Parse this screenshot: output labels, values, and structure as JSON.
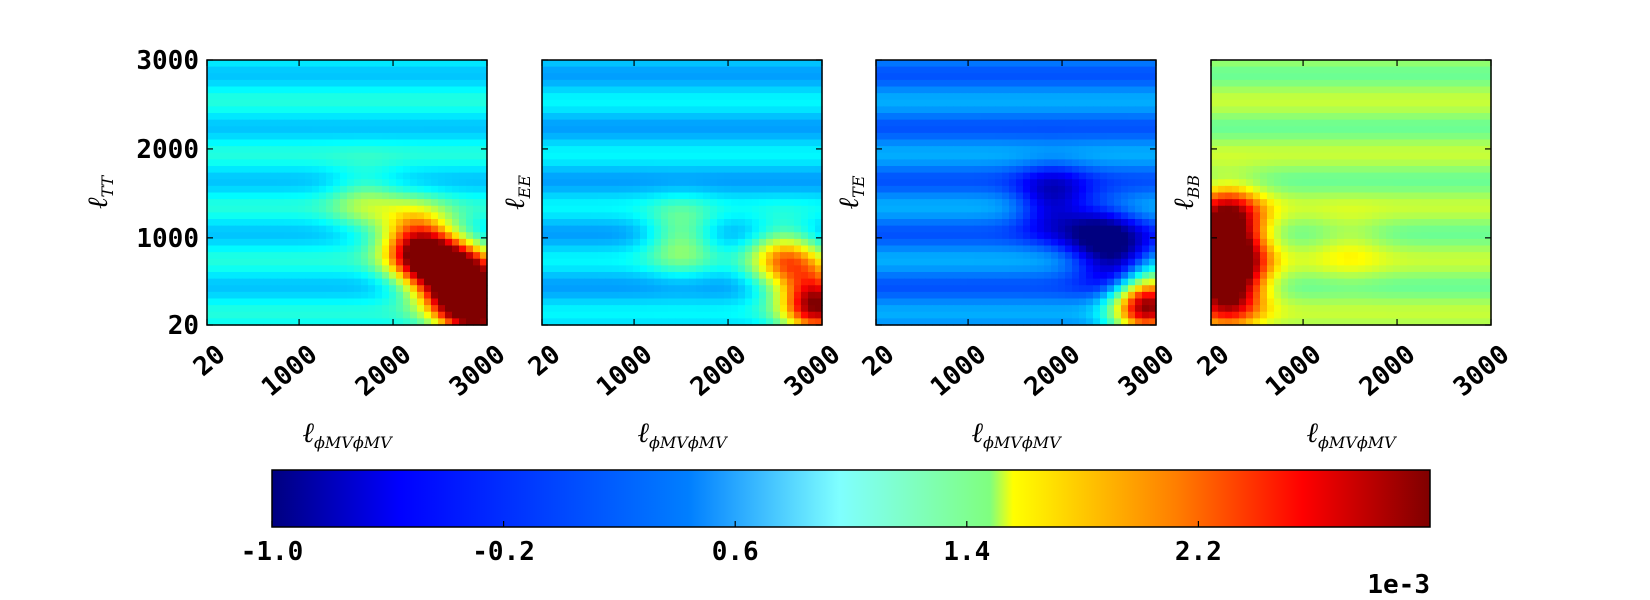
{
  "chart_data": [
    {
      "type": "heatmap",
      "panel": "TT",
      "xlabel": "ℓ",
      "xlabel_sub": "ϕMVϕMV",
      "ylabel": "ℓ",
      "ylabel_sub": "TT",
      "xlim": [
        20,
        3000
      ],
      "ylim": [
        20,
        3000
      ],
      "xticks": [
        "20",
        "1000",
        "2000",
        "3000"
      ],
      "yticks": [
        "20",
        "1000",
        "2000",
        "3000"
      ],
      "show_yticks": true,
      "mean": 0.00045,
      "features": [
        {
          "x": 2700,
          "y": 500,
          "value": 0.003
        },
        {
          "x": 2900,
          "y": 250,
          "value": 0.0032
        },
        {
          "x": 2400,
          "y": 750,
          "value": 0.0026
        },
        {
          "x": 2200,
          "y": 1000,
          "value": 0.0018
        },
        {
          "x": 1700,
          "y": 1400,
          "value": 0.001
        }
      ]
    },
    {
      "type": "heatmap",
      "panel": "EE",
      "xlabel": "ℓ",
      "xlabel_sub": "ϕMVϕMV",
      "ylabel": "ℓ",
      "ylabel_sub": "EE",
      "xlim": [
        20,
        3000
      ],
      "ylim": [
        20,
        3000
      ],
      "xticks": [
        "20",
        "1000",
        "2000",
        "3000"
      ],
      "show_yticks": false,
      "mean": 0.0003,
      "features": [
        {
          "x": 2950,
          "y": 280,
          "value": 0.0029
        },
        {
          "x": 2600,
          "y": 750,
          "value": 0.0018
        },
        {
          "x": 1500,
          "y": 1000,
          "value": 0.0011
        }
      ]
    },
    {
      "type": "heatmap",
      "panel": "TE",
      "xlabel": "ℓ",
      "xlabel_sub": "ϕMVϕMV",
      "ylabel": "ℓ",
      "ylabel_sub": "TE",
      "xlim": [
        20,
        3000
      ],
      "ylim": [
        20,
        3000
      ],
      "xticks": [
        "20",
        "1000",
        "2000",
        "3000"
      ],
      "show_yticks": false,
      "mean": 0.0,
      "features": [
        {
          "x": 2900,
          "y": 280,
          "value": 0.0031
        },
        {
          "x": 2700,
          "y": 650,
          "value": -0.001
        },
        {
          "x": 2400,
          "y": 1000,
          "value": -0.0009
        },
        {
          "x": 1900,
          "y": 1400,
          "value": -0.0008
        }
      ]
    },
    {
      "type": "heatmap",
      "panel": "BB",
      "xlabel": "ℓ",
      "xlabel_sub": "ϕMVϕMV",
      "ylabel": "ℓ",
      "ylabel_sub": "BB",
      "xlim": [
        20,
        3000
      ],
      "ylim": [
        20,
        3000
      ],
      "xticks": [
        "20",
        "1000",
        "2000",
        "3000"
      ],
      "show_yticks": false,
      "mean": 0.0011,
      "features": [
        {
          "x": 200,
          "y": 400,
          "value": 0.003
        },
        {
          "x": 200,
          "y": 800,
          "value": 0.003
        },
        {
          "x": 200,
          "y": 1200,
          "value": 0.0028
        },
        {
          "x": 1500,
          "y": 900,
          "value": 0.0014
        }
      ]
    }
  ],
  "colorbar": {
    "vmin": -0.001,
    "vmax": 0.003,
    "ticks": [
      "-1.0",
      "-0.2",
      "0.6",
      "1.4",
      "2.2"
    ],
    "tick_values": [
      -1.0,
      -0.2,
      0.6,
      1.4,
      2.2
    ],
    "scale_label": "1e-3",
    "colormap": "jet",
    "colormap_stops": [
      "#00007f",
      "#0000ff",
      "#007fff",
      "#7fffff",
      "#7fff7f",
      "#ffff00",
      "#ff7f00",
      "#ff0000",
      "#7f0000"
    ]
  }
}
